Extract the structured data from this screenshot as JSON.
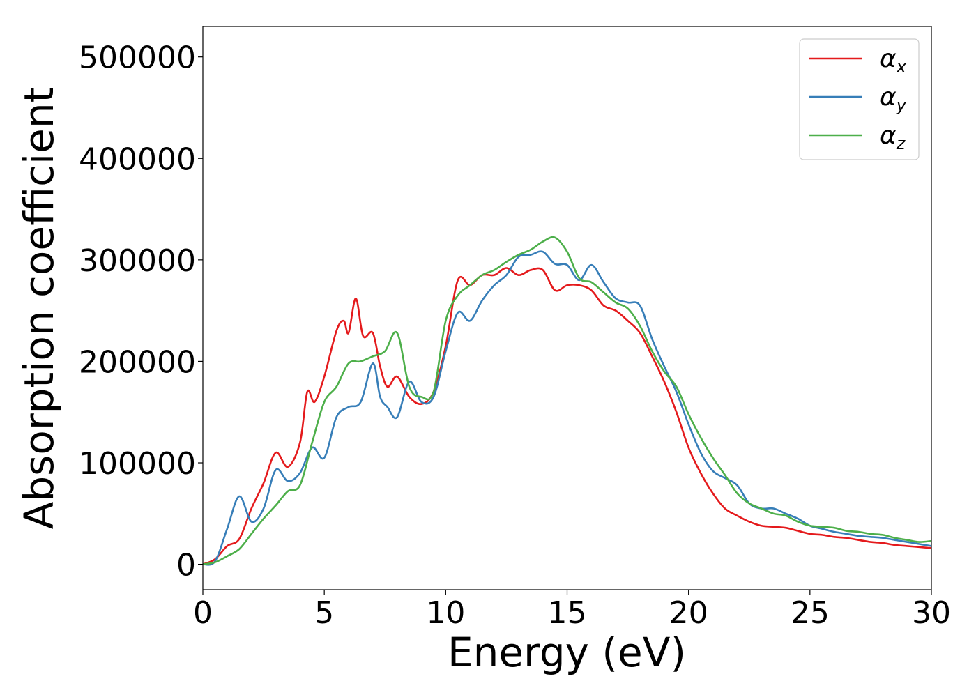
{
  "chart_data": {
    "type": "line",
    "title": "",
    "xlabel": "Energy (eV)",
    "ylabel": "Absorption coefficient",
    "xlim": [
      0,
      30
    ],
    "ylim": [
      -25000,
      530000
    ],
    "grid": false,
    "legend_position": "top-right",
    "x_ticks": [
      0,
      5,
      10,
      15,
      20,
      25,
      30
    ],
    "x_tick_labels": [
      "0",
      "5",
      "10",
      "15",
      "20",
      "25",
      "30"
    ],
    "y_ticks": [
      0,
      100000,
      200000,
      300000,
      400000,
      500000
    ],
    "y_tick_labels": [
      "0",
      "100000",
      "200000",
      "300000",
      "400000",
      "500000"
    ],
    "series": [
      {
        "name": "α_x",
        "label_main": "α",
        "label_sub": "x",
        "color": "#e41a1c",
        "x": [
          0,
          0.5,
          1,
          1.5,
          2,
          2.5,
          3,
          3.5,
          4,
          4.3,
          4.6,
          5,
          5.5,
          5.8,
          6,
          6.3,
          6.6,
          7,
          7.3,
          7.6,
          8,
          8.5,
          9,
          9.5,
          10,
          10.5,
          11,
          11.5,
          12,
          12.5,
          13,
          13.5,
          14,
          14.5,
          15,
          15.5,
          16,
          16.5,
          17,
          17.5,
          18,
          18.5,
          19,
          19.5,
          20,
          20.5,
          21,
          21.5,
          22,
          22.5,
          23,
          23.5,
          24,
          24.5,
          25,
          25.5,
          26,
          26.5,
          27,
          27.5,
          28,
          28.5,
          29,
          29.5,
          30
        ],
        "y": [
          0,
          5000,
          18000,
          25000,
          55000,
          80000,
          110000,
          96000,
          120000,
          170000,
          160000,
          185000,
          230000,
          240000,
          228000,
          262000,
          225000,
          228000,
          195000,
          175000,
          185000,
          165000,
          158000,
          170000,
          215000,
          280000,
          275000,
          285000,
          285000,
          292000,
          285000,
          290000,
          290000,
          270000,
          275000,
          275000,
          270000,
          255000,
          250000,
          240000,
          228000,
          205000,
          180000,
          150000,
          115000,
          90000,
          70000,
          55000,
          48000,
          42000,
          38000,
          37000,
          36000,
          33000,
          30000,
          29000,
          27000,
          26000,
          24000,
          22000,
          21000,
          19000,
          18000,
          17000,
          16000
        ]
      },
      {
        "name": "α_y",
        "label_main": "α",
        "label_sub": "y",
        "color": "#377eb8",
        "x": [
          0,
          0.5,
          1,
          1.5,
          2,
          2.5,
          3,
          3.5,
          4,
          4.5,
          5,
          5.5,
          6,
          6.5,
          7,
          7.3,
          7.6,
          8,
          8.5,
          9,
          9.5,
          10,
          10.5,
          11,
          11.5,
          12,
          12.5,
          13,
          13.5,
          14,
          14.5,
          15,
          15.5,
          16,
          16.5,
          17,
          17.5,
          18,
          18.5,
          19,
          19.5,
          20,
          20.5,
          21,
          21.5,
          22,
          22.5,
          23,
          23.5,
          24,
          24.5,
          25,
          25.5,
          26,
          26.5,
          27,
          27.5,
          28,
          28.5,
          29,
          29.5,
          30
        ],
        "y": [
          0,
          3000,
          35000,
          67000,
          42000,
          55000,
          93000,
          82000,
          90000,
          115000,
          105000,
          145000,
          155000,
          160000,
          198000,
          165000,
          155000,
          145000,
          180000,
          160000,
          165000,
          210000,
          248000,
          240000,
          260000,
          275000,
          285000,
          303000,
          305000,
          308000,
          296000,
          295000,
          280000,
          295000,
          278000,
          262000,
          258000,
          255000,
          222000,
          195000,
          170000,
          138000,
          110000,
          92000,
          85000,
          78000,
          60000,
          55000,
          55000,
          50000,
          45000,
          38000,
          35000,
          32000,
          30000,
          28000,
          27000,
          26000,
          24000,
          22000,
          20000,
          18000
        ]
      },
      {
        "name": "α_z",
        "label_main": "α",
        "label_sub": "z",
        "color": "#4daf4a",
        "x": [
          0,
          0.5,
          1,
          1.5,
          2,
          2.5,
          3,
          3.5,
          4,
          4.5,
          5,
          5.5,
          6,
          6.5,
          7,
          7.5,
          8,
          8.5,
          9,
          9.5,
          10,
          10.5,
          11,
          11.5,
          12,
          12.5,
          13,
          13.5,
          14,
          14.5,
          15,
          15.5,
          16,
          16.5,
          17,
          17.5,
          18,
          18.5,
          19,
          19.5,
          20,
          20.5,
          21,
          21.5,
          22,
          22.5,
          23,
          23.5,
          24,
          24.5,
          25,
          25.5,
          26,
          26.5,
          27,
          27.5,
          28,
          28.5,
          29,
          29.5,
          30
        ],
        "y": [
          0,
          2000,
          8000,
          15000,
          30000,
          45000,
          58000,
          72000,
          78000,
          120000,
          160000,
          175000,
          198000,
          200000,
          205000,
          210000,
          228000,
          175000,
          165000,
          170000,
          240000,
          265000,
          275000,
          285000,
          290000,
          298000,
          305000,
          310000,
          318000,
          322000,
          308000,
          282000,
          278000,
          268000,
          258000,
          252000,
          235000,
          210000,
          190000,
          175000,
          148000,
          125000,
          105000,
          88000,
          70000,
          60000,
          55000,
          50000,
          48000,
          42000,
          38000,
          37000,
          36000,
          33000,
          32000,
          30000,
          29000,
          26000,
          24000,
          22000,
          23000
        ]
      }
    ]
  }
}
